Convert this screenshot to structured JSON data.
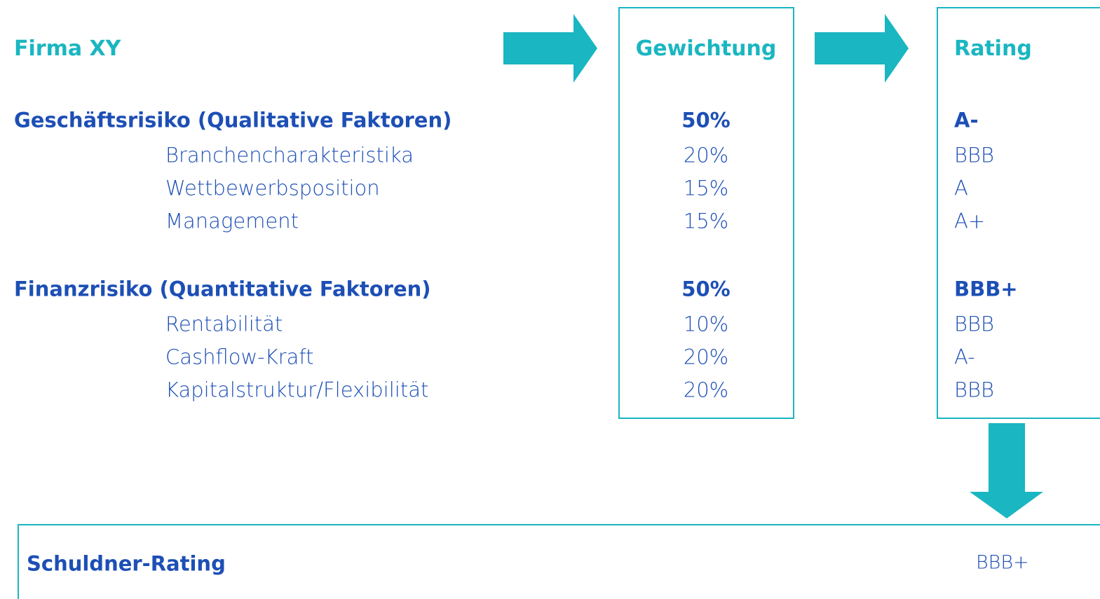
{
  "header": {
    "title": "Firma XY",
    "weight_heading": "Gewichtung",
    "rating_heading": "Rating"
  },
  "groups": [
    {
      "label": "Geschäftsrisiko (Qualitative Faktoren)",
      "weight": "50%",
      "rating": "A-",
      "items": [
        {
          "label": "Branchencharakteristika",
          "weight": "20%",
          "rating": "BBB"
        },
        {
          "label": "Wettbewerbsposition",
          "weight": "15%",
          "rating": "A"
        },
        {
          "label": "Management",
          "weight": "15%",
          "rating": "A+"
        }
      ]
    },
    {
      "label": "Finanzrisiko (Quantitative Faktoren)",
      "weight": "50%",
      "rating": "BBB+",
      "items": [
        {
          "label": "Rentabilität",
          "weight": "10%",
          "rating": "BBB"
        },
        {
          "label": "Cashflow-Kraft",
          "weight": "20%",
          "rating": "A-"
        },
        {
          "label": "Kapitalstruktur/Flexibilität",
          "weight": "20%",
          "rating": "BBB"
        }
      ]
    }
  ],
  "result": {
    "label": "Schuldner-Rating",
    "rating": "BBB+"
  }
}
